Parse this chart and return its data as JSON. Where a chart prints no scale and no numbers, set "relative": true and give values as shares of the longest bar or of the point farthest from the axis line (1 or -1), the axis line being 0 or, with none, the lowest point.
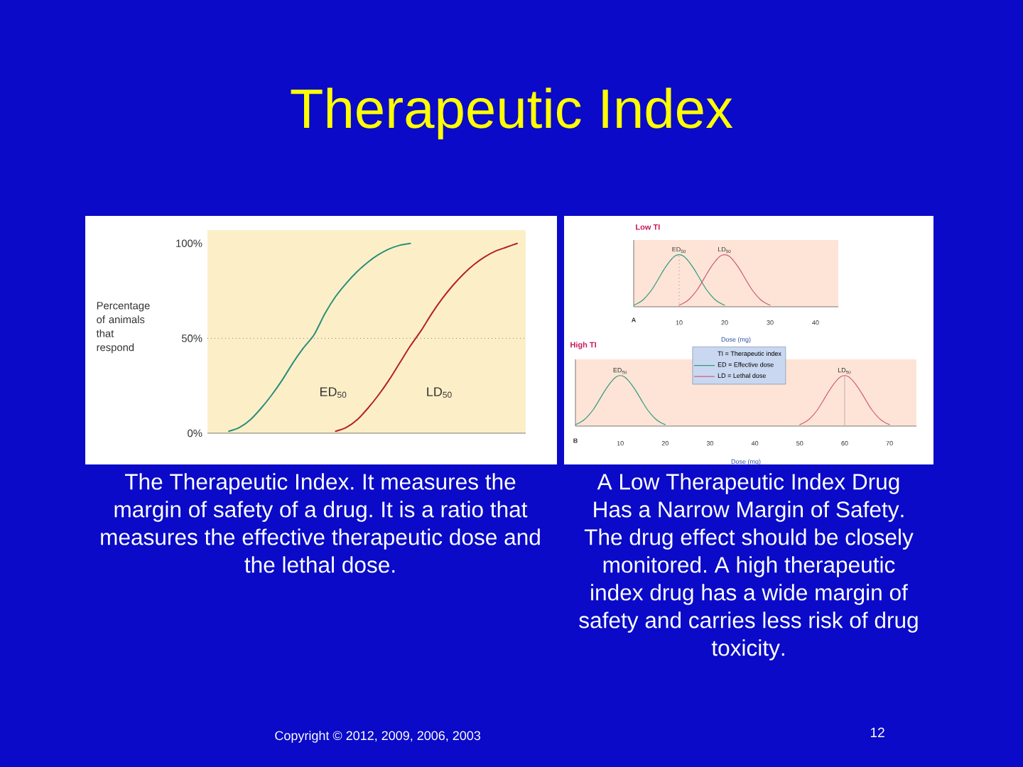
{
  "chart_data": [
    {
      "type": "other",
      "title": "Therapeutic Index",
      "annotations": [
        "The Therapeutic Index. It measures the margin of safety of a drug. It is a ratio that measures the effective therapeutic dose and the lethal dose.",
        "A Low Therapeutic Index Drug Has a Narrow Margin of Safety.",
        "The drug effect should be closely monitored. A high therapeutic index drug has a wide margin of safety and carries less risk of drug toxicity.",
        "Copyright © 2012, 2009, 2006, 2003",
        "12"
      ]
    },
    {
      "type": "line",
      "categories": [
        null,
        null,
        null,
        null,
        null,
        null,
        null,
        null,
        null,
        null,
        null,
        null,
        null,
        null,
        null,
        null,
        null,
        null,
        null,
        null,
        null,
        null,
        null,
        null,
        null,
        null,
        null,
        null
      ],
      "ylabel": "Percentage of animals that respond",
      "ylim": [
        0,
        107
      ],
      "yticks": [
        {
          "value": 0,
          "label": "0%"
        },
        {
          "value": 50,
          "label": "50%"
        },
        {
          "value": 100,
          "label": "100%"
        }
      ],
      "series": [
        {
          "color": "#2b8f78",
          "values": [
            1,
            3,
            7,
            13,
            20,
            28,
            37,
            45,
            52,
            63,
            72,
            79,
            85,
            90,
            94,
            97,
            99,
            100,
            null,
            null,
            null,
            null,
            null,
            null,
            null,
            null,
            null,
            null
          ]
        },
        {
          "color": "#b5202e",
          "values": [
            null,
            null,
            null,
            null,
            null,
            null,
            null,
            null,
            null,
            null,
            1,
            3,
            7,
            13,
            20,
            28,
            37,
            46,
            54,
            63,
            71,
            78,
            84,
            89,
            93,
            96,
            98,
            100
          ]
        }
      ],
      "ref_lines": [
        {
          "axis": "y",
          "value": 50,
          "line_style": "dotted",
          "color": "#808080"
        }
      ],
      "annotations": [
        "ED$_{50}$",
        "LD$_{50}$"
      ]
    },
    {
      "type": "line",
      "title": "Low TI",
      "xlabel": "Dose (mg)",
      "relative": true,
      "tick_labels": "x",
      "xlim": [
        0,
        45
      ],
      "xticks": [
        10,
        20,
        30,
        40
      ],
      "series": [
        {
          "color": "#2f9a80",
          "x": [
            0,
            1,
            2,
            3,
            4,
            5,
            6,
            7,
            8,
            9,
            10,
            11,
            12,
            13,
            14,
            15,
            16,
            17,
            18,
            19,
            20
          ],
          "values": [
            0.03,
            0.07,
            0.13,
            0.22,
            0.33,
            0.47,
            0.62,
            0.76,
            0.88,
            0.97,
            1,
            0.97,
            0.88,
            0.76,
            0.62,
            0.47,
            0.33,
            0.22,
            0.13,
            0.07,
            0.03
          ]
        },
        {
          "color": "#cc5a78",
          "x": [
            10,
            11,
            12,
            13,
            14,
            15,
            16,
            17,
            18,
            19,
            20,
            21,
            22,
            23,
            24,
            25,
            26,
            27,
            28,
            29,
            30
          ],
          "values": [
            0.03,
            0.07,
            0.13,
            0.22,
            0.33,
            0.47,
            0.62,
            0.76,
            0.88,
            0.97,
            1,
            0.97,
            0.88,
            0.76,
            0.62,
            0.47,
            0.33,
            0.22,
            0.13,
            0.07,
            0.03
          ]
        }
      ],
      "ref_lines": [
        {
          "axis": "x",
          "value": 10,
          "line_style": "dotted",
          "color": "#909090"
        }
      ],
      "annotations": [
        "A",
        {
          "text": "ED$_{50}$",
          "x": 10,
          "y": 1
        },
        {
          "text": "LD$_{50}$",
          "x": 20,
          "y": 1
        }
      ]
    },
    {
      "type": "line",
      "title": "High TI",
      "xlabel": "Dose (mg)",
      "relative": true,
      "tick_labels": "x",
      "xlim": [
        0,
        76
      ],
      "xticks": [
        10,
        20,
        30,
        40,
        50,
        60,
        70
      ],
      "legend": "top",
      "legend_title": "TI = Therapeutic index",
      "series": [
        {
          "name": "ED = Effective dose",
          "color": "#2f9a80",
          "x": [
            0,
            1,
            2,
            3,
            4,
            5,
            6,
            7,
            8,
            9,
            10,
            11,
            12,
            13,
            14,
            15,
            16,
            17,
            18,
            19,
            20
          ],
          "values": [
            0.03,
            0.07,
            0.13,
            0.22,
            0.33,
            0.47,
            0.62,
            0.76,
            0.88,
            0.97,
            1,
            0.97,
            0.88,
            0.76,
            0.62,
            0.47,
            0.33,
            0.22,
            0.13,
            0.07,
            0.03
          ]
        },
        {
          "name": "LD = Lethal dose",
          "color": "#d0607a",
          "x": [
            50,
            51,
            52,
            53,
            54,
            55,
            56,
            57,
            58,
            59,
            60,
            61,
            62,
            63,
            64,
            65,
            66,
            67,
            68,
            69,
            70
          ],
          "values": [
            0.03,
            0.07,
            0.13,
            0.22,
            0.33,
            0.47,
            0.62,
            0.76,
            0.88,
            0.97,
            1,
            0.97,
            0.88,
            0.76,
            0.62,
            0.47,
            0.33,
            0.22,
            0.13,
            0.07,
            0.03
          ]
        }
      ],
      "ref_lines": [
        {
          "axis": "x",
          "value": 60,
          "color": "#c8a8b0"
        }
      ],
      "annotations": [
        "B",
        {
          "text": "ED$_{50}$",
          "x": 10,
          "y": 1
        },
        {
          "text": "LD$_{50}$",
          "x": 60,
          "y": 1
        }
      ]
    }
  ]
}
